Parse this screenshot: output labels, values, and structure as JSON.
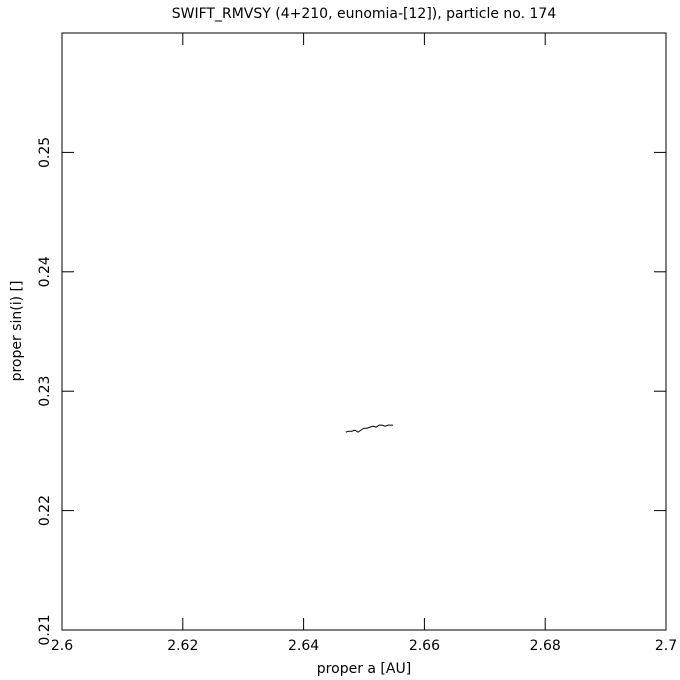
{
  "chart_data": {
    "type": "line",
    "title": "SWIFT_RMVSY (4+210, eunomia-[12]), particle no. 174",
    "x_label": "proper a [AU]",
    "y_label": "proper sin(i) []",
    "xlim": [
      2.6,
      2.7
    ],
    "xticks": [
      2.6,
      2.62,
      2.64,
      2.66,
      2.68,
      2.7
    ],
    "ylim": [
      0.21,
      0.26
    ],
    "yticks": [
      0.21,
      0.22,
      0.23,
      0.24,
      0.25
    ],
    "grid": false,
    "series": [
      {
        "color": "#000000",
        "x": [
          2.647,
          2.6475,
          2.648,
          2.6485,
          2.649,
          2.6495,
          2.65,
          2.6505,
          2.651,
          2.6515,
          2.652,
          2.6525,
          2.653,
          2.6535,
          2.654,
          2.6548
        ],
        "values": [
          0.22657,
          0.22665,
          0.22665,
          0.22674,
          0.22657,
          0.22674,
          0.2269,
          0.2269,
          0.22699,
          0.22707,
          0.22699,
          0.22716,
          0.22716,
          0.22707,
          0.22716,
          0.22716
        ]
      }
    ]
  }
}
